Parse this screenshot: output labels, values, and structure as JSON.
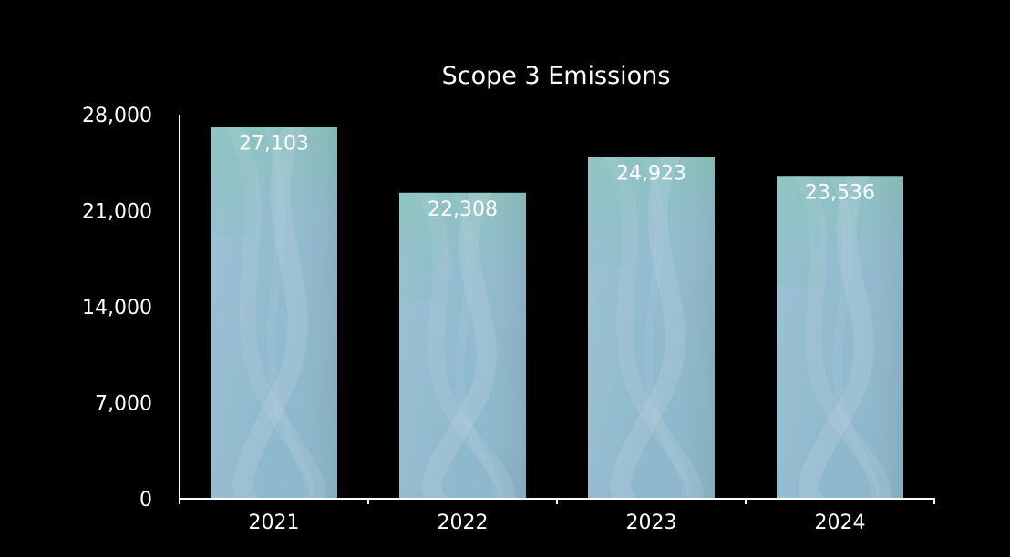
{
  "chart_data": {
    "type": "bar",
    "title": "Scope 3 Emissions",
    "xlabel": "",
    "ylabel": "",
    "categories": [
      "2021",
      "2022",
      "2023",
      "2024"
    ],
    "values": [
      27103,
      22308,
      24923,
      23536
    ],
    "data_labels": [
      "27,103",
      "22,308",
      "24,923",
      "23,536"
    ],
    "yticks": [
      0,
      7000,
      14000,
      21000,
      28000
    ],
    "ytick_labels": [
      "0",
      "7,000",
      "14,000",
      "21,000",
      "28,000"
    ],
    "ylim": [
      0,
      28000
    ],
    "grid": false,
    "legend": "none"
  },
  "colors": {
    "background": "#000000",
    "bar_fill": "#8fb9cc",
    "bar_texture_light": "#b9d3de",
    "bar_texture_teal": "#7ec3b6",
    "text": "#ffffff",
    "axis": "#ffffff"
  }
}
